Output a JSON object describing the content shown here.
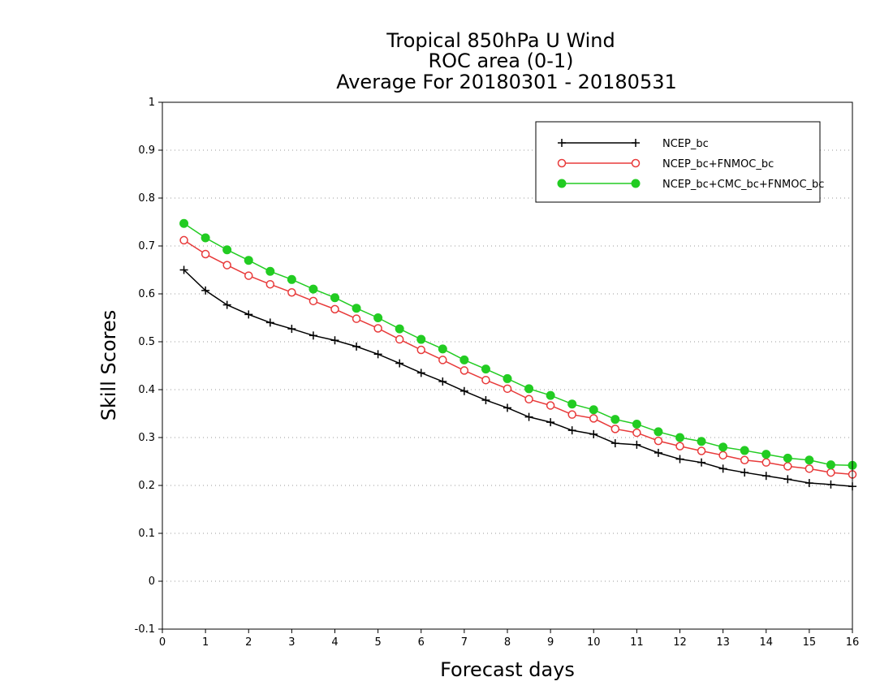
{
  "chart_data": {
    "type": "line",
    "title_lines": [
      "Tropical 850hPa U Wind",
      "ROC area (0-1)",
      "Average For 20180301 - 20180531"
    ],
    "xlabel": "Forecast days",
    "ylabel": "Skill Scores",
    "xlim": [
      0,
      16
    ],
    "ylim": [
      -0.1,
      1
    ],
    "xticks": [
      0,
      1,
      2,
      3,
      4,
      5,
      6,
      7,
      8,
      9,
      10,
      11,
      12,
      13,
      14,
      15,
      16
    ],
    "yticks": [
      -0.1,
      0,
      0.1,
      0.2,
      0.3,
      0.4,
      0.5,
      0.6,
      0.7,
      0.8,
      0.9,
      1
    ],
    "ytick_labels": [
      "-0.1",
      "0",
      "0.1",
      "0.2",
      "0.3",
      "0.4",
      "0.5",
      "0.6",
      "0.7",
      "0.8",
      "0.9",
      "1"
    ],
    "grid": "horizontal dotted",
    "legend_position": "top-right",
    "x": [
      0.5,
      1.0,
      1.5,
      2.0,
      2.5,
      3.0,
      3.5,
      4.0,
      4.5,
      5.0,
      5.5,
      6.0,
      6.5,
      7.0,
      7.5,
      8.0,
      8.5,
      9.0,
      9.5,
      10.0,
      10.5,
      11.0,
      11.5,
      12.0,
      12.5,
      13.0,
      13.5,
      14.0,
      14.5,
      15.0,
      15.5,
      16.0
    ],
    "series": [
      {
        "name": "NCEP_bc",
        "color": "#000000",
        "marker": "plus",
        "values": [
          0.65,
          0.607,
          0.577,
          0.557,
          0.54,
          0.527,
          0.513,
          0.503,
          0.49,
          0.474,
          0.455,
          0.435,
          0.417,
          0.397,
          0.378,
          0.362,
          0.343,
          0.332,
          0.315,
          0.307,
          0.288,
          0.285,
          0.268,
          0.255,
          0.248,
          0.235,
          0.227,
          0.22,
          0.213,
          0.205,
          0.202,
          0.198
        ]
      },
      {
        "name": "NCEP_bc+FNMOC_bc",
        "color": "#e83a3a",
        "marker": "open-circle",
        "values": [
          0.712,
          0.683,
          0.66,
          0.638,
          0.62,
          0.603,
          0.585,
          0.568,
          0.548,
          0.528,
          0.505,
          0.483,
          0.462,
          0.44,
          0.42,
          0.402,
          0.38,
          0.367,
          0.348,
          0.34,
          0.318,
          0.31,
          0.293,
          0.282,
          0.272,
          0.263,
          0.253,
          0.248,
          0.24,
          0.235,
          0.227,
          0.223
        ]
      },
      {
        "name": "NCEP_bc+CMC_bc+FNMOC_bc",
        "color": "#22cc22",
        "marker": "filled-circle",
        "values": [
          0.747,
          0.717,
          0.692,
          0.67,
          0.647,
          0.63,
          0.61,
          0.592,
          0.57,
          0.55,
          0.527,
          0.505,
          0.485,
          0.462,
          0.443,
          0.423,
          0.402,
          0.388,
          0.37,
          0.358,
          0.338,
          0.328,
          0.312,
          0.3,
          0.292,
          0.28,
          0.273,
          0.265,
          0.257,
          0.253,
          0.243,
          0.242
        ]
      }
    ]
  }
}
